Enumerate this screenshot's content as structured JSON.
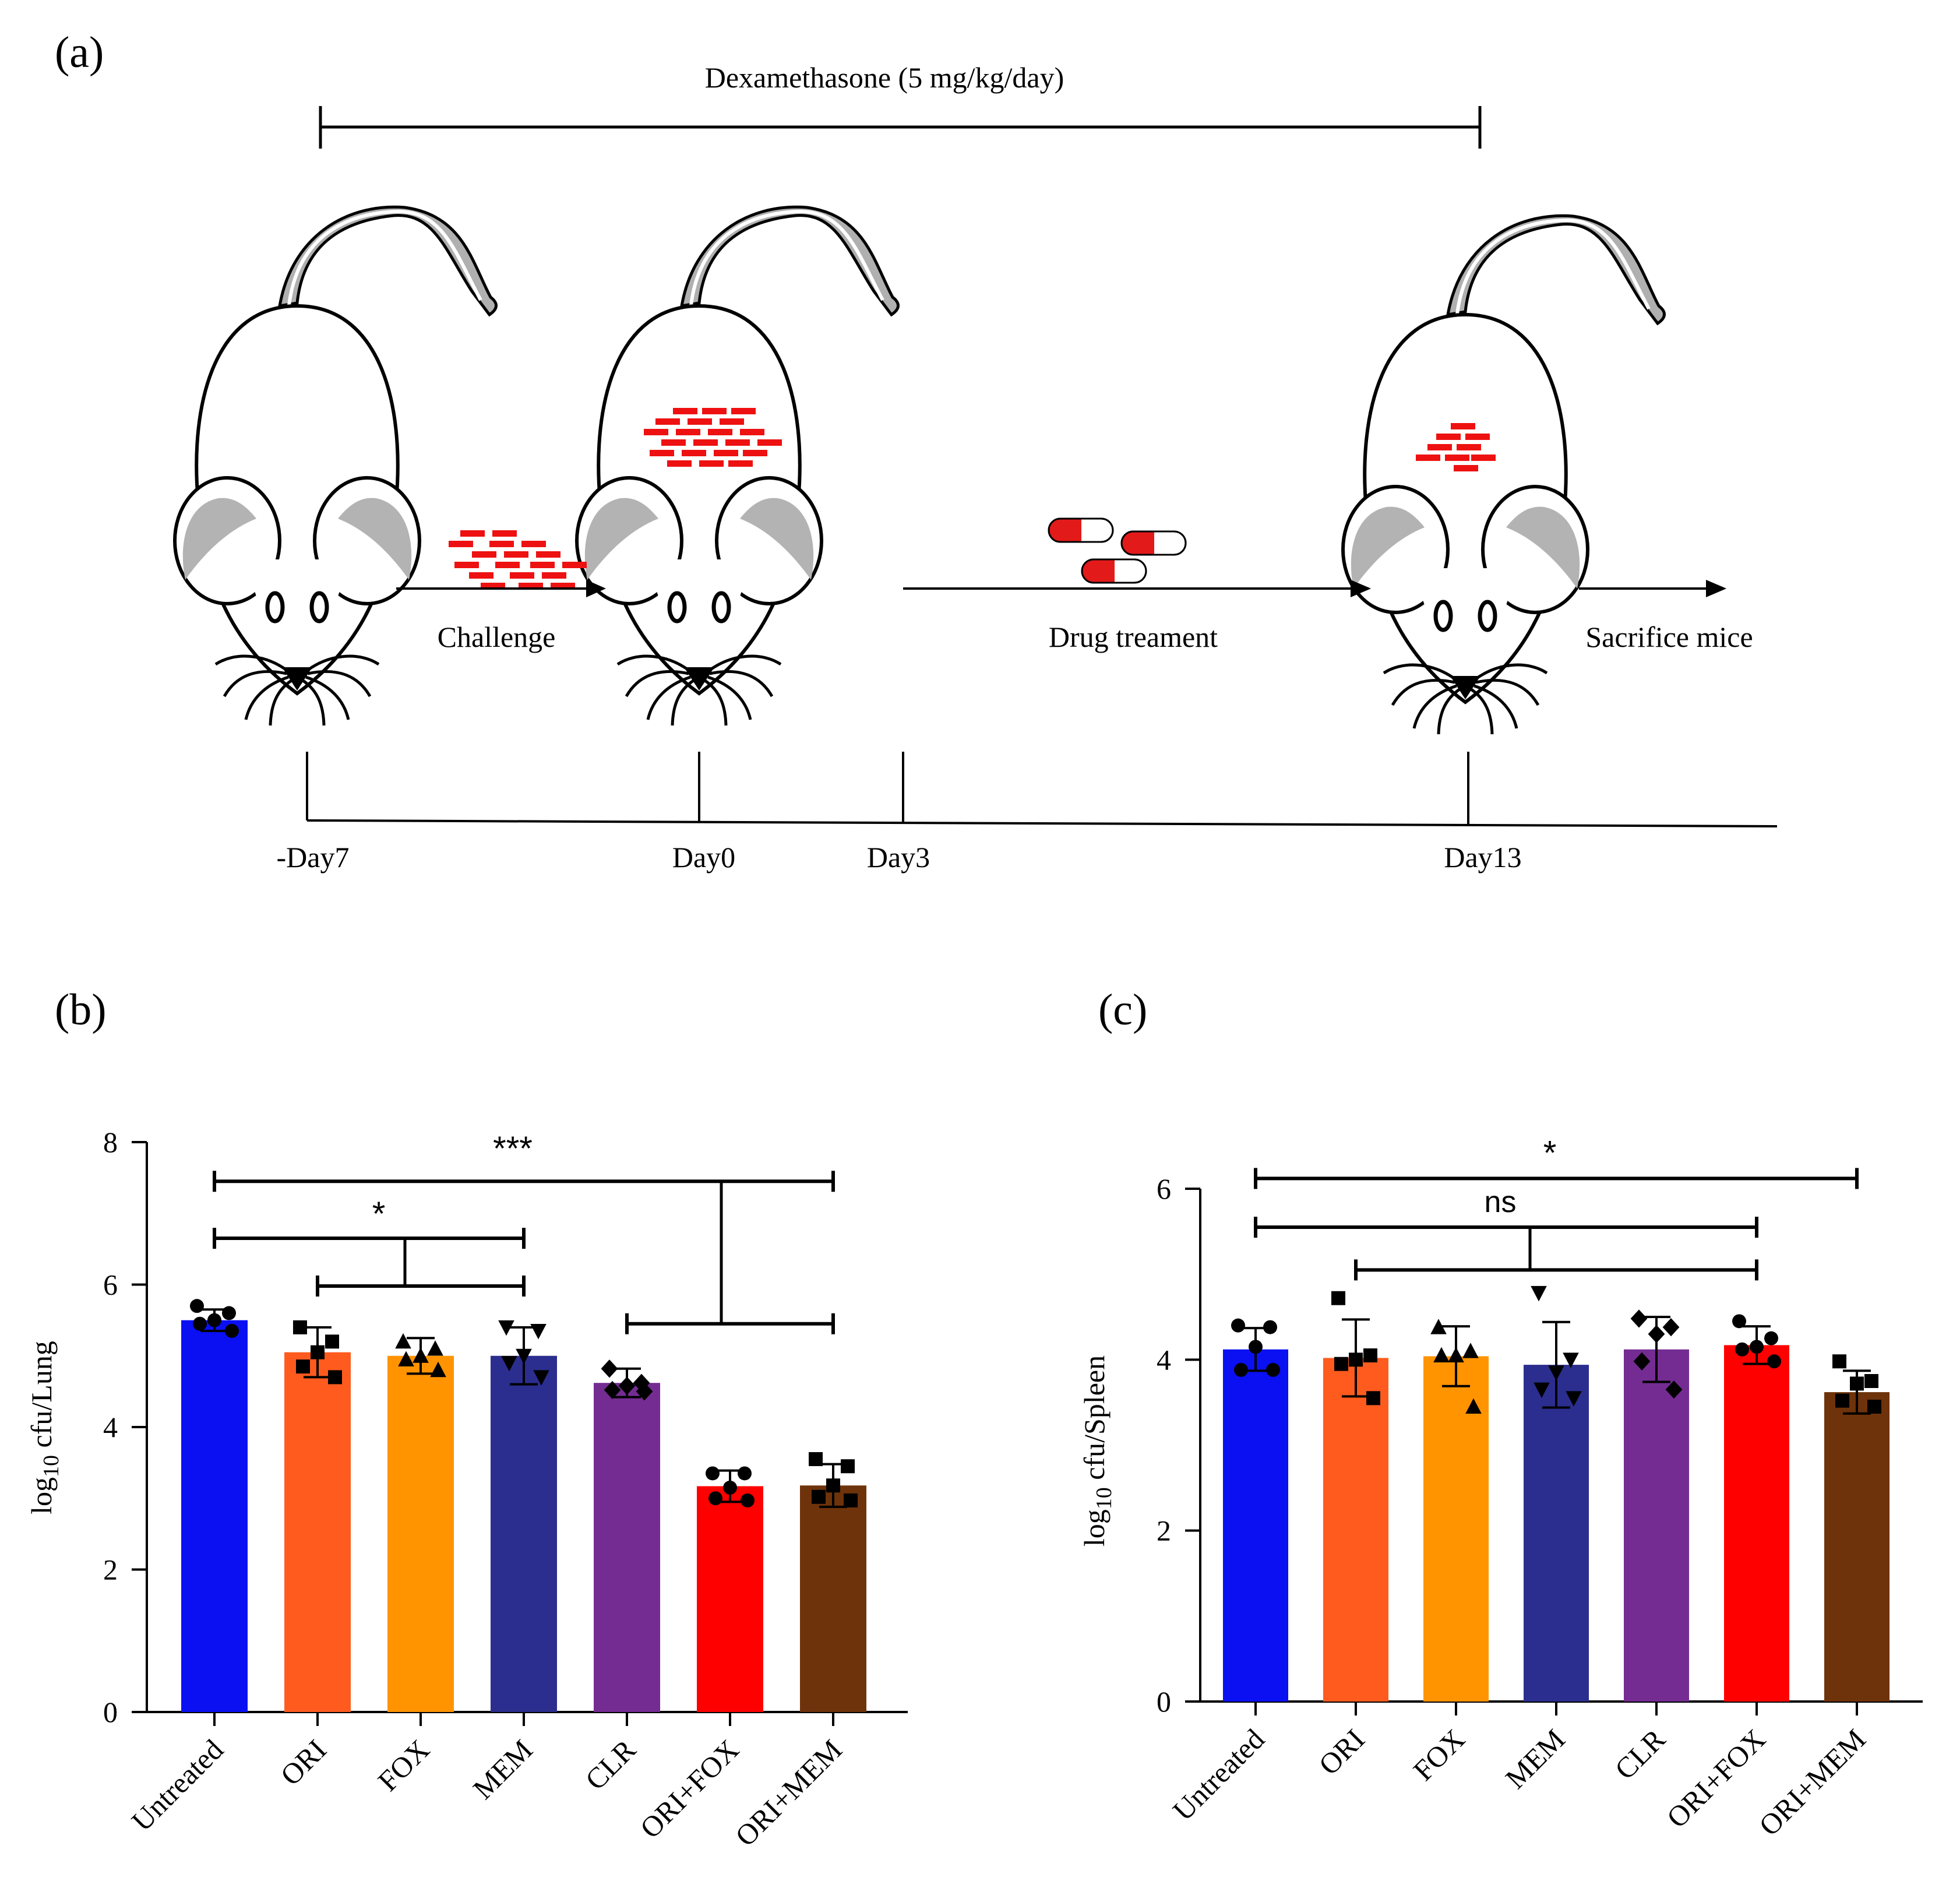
{
  "panels": {
    "a": "(a)",
    "b": "(b)",
    "c": "(c)"
  },
  "timeline": {
    "dexamethasone_label": "Dexamethasone (5 mg/kg/day)",
    "challenge_label": "Challenge",
    "drug_label": "Drug treament",
    "sacrifice_label": "Sacrifice mice",
    "days": [
      "-Day7",
      "Day0",
      "Day3",
      "Day13"
    ]
  },
  "colors": {
    "Untreated": "#0a10f2",
    "ORI": "#ff5b1e",
    "FOX": "#ff9400",
    "MEM": "#2b2e8e",
    "CLR": "#742c92",
    "ORI+FOX": "#ff0000",
    "ORI+MEM": "#6e330b",
    "bacteria": "#ee1111"
  },
  "chart_data": [
    {
      "type": "bar",
      "panel": "(b)",
      "categories": [
        "Untreated",
        "ORI",
        "FOX",
        "MEM",
        "CLR",
        "ORI+FOX",
        "ORI+MEM"
      ],
      "values": [
        5.5,
        5.05,
        5.0,
        5.0,
        4.62,
        3.17,
        3.18
      ],
      "errors": [
        0.15,
        0.35,
        0.25,
        0.4,
        0.2,
        0.22,
        0.3
      ],
      "points": [
        [
          5.7,
          5.6,
          5.5,
          5.45,
          5.35
        ],
        [
          5.4,
          5.2,
          5.05,
          4.85,
          4.7
        ],
        [
          5.2,
          5.1,
          5.0,
          4.95,
          4.8
        ],
        [
          5.4,
          5.35,
          5.0,
          4.9,
          4.7
        ],
        [
          4.82,
          4.62,
          4.58,
          4.52,
          4.5
        ],
        [
          3.35,
          3.35,
          3.15,
          3.0,
          2.97
        ],
        [
          3.55,
          3.45,
          3.18,
          3.02,
          2.97
        ]
      ],
      "markers": [
        "circle",
        "square",
        "triangle-up",
        "triangle-down",
        "diamond",
        "circle",
        "square"
      ],
      "ylabel": "log10 cfu/Lung",
      "ylim": [
        0,
        8
      ],
      "yticks": [
        "0",
        "2",
        "4",
        "6",
        "8"
      ],
      "significance": [
        "***",
        "*"
      ]
    },
    {
      "type": "bar",
      "panel": "(c)",
      "categories": [
        "Untreated",
        "ORI",
        "FOX",
        "MEM",
        "CLR",
        "ORI+FOX",
        "ORI+MEM"
      ],
      "values": [
        4.12,
        4.02,
        4.04,
        3.94,
        4.12,
        4.17,
        3.62
      ],
      "errors": [
        0.25,
        0.45,
        0.35,
        0.5,
        0.38,
        0.22,
        0.25
      ],
      "points": [
        [
          4.4,
          4.38,
          4.15,
          3.88,
          3.88
        ],
        [
          4.72,
          4.05,
          4.0,
          3.95,
          3.55
        ],
        [
          4.38,
          4.1,
          4.05,
          4.05,
          3.45
        ],
        [
          4.78,
          4.0,
          3.85,
          3.65,
          3.55
        ],
        [
          4.48,
          4.38,
          4.3,
          3.98,
          3.65
        ],
        [
          4.45,
          4.25,
          4.15,
          4.12,
          3.98
        ],
        [
          3.98,
          3.75,
          3.72,
          3.52,
          3.45
        ]
      ],
      "markers": [
        "circle",
        "square",
        "triangle-up",
        "triangle-down",
        "diamond",
        "circle",
        "square"
      ],
      "ylabel": "log10 cfu/Spleen",
      "ylim": [
        0,
        6
      ],
      "yticks": [
        "0",
        "2",
        "4",
        "6"
      ],
      "significance": [
        "*",
        "ns"
      ]
    }
  ]
}
